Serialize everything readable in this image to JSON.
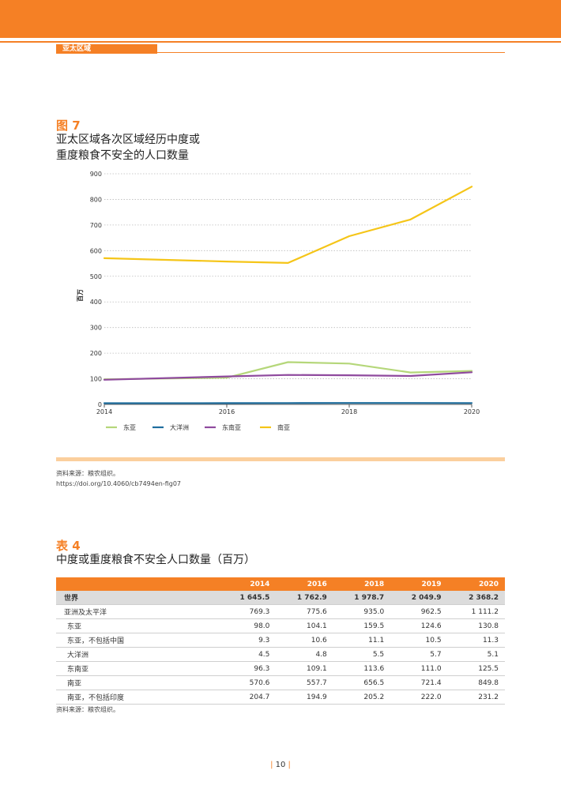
{
  "header": {
    "section": "亚太区域"
  },
  "figure": {
    "label": "图 7",
    "title_line1": "亚太区域各次区域经历中度或",
    "title_line2": "重度粮食不安全的人口数量",
    "source_line1": "资料来源：粮农组织。",
    "source_line2": "https://doi.org/10.4060/cb7494en-fig07"
  },
  "chart_data": {
    "type": "line",
    "ylabel": "百万",
    "xlabel": "",
    "ylim": [
      0,
      900
    ],
    "xlim": [
      2014,
      2020
    ],
    "yticks": [
      0,
      100,
      200,
      300,
      400,
      500,
      600,
      700,
      800,
      900
    ],
    "xticks": [
      2014,
      2016,
      2018,
      2020
    ],
    "x": [
      2014,
      2016,
      2017,
      2018,
      2019,
      2020
    ],
    "grid": "horizontal dotted",
    "legend_position": "bottom",
    "series": [
      {
        "name": "东亚",
        "color": "#b5d77a",
        "values": [
          98.0,
          104.1,
          165,
          159.5,
          124.6,
          130.8
        ]
      },
      {
        "name": "大洋洲",
        "color": "#1f6e9e",
        "values": [
          4.5,
          4.8,
          5.2,
          5.5,
          5.7,
          5.1
        ]
      },
      {
        "name": "东南亚",
        "color": "#8f4a9e",
        "values": [
          96.3,
          109.1,
          115,
          113.6,
          111.0,
          125.5
        ]
      },
      {
        "name": "南亚",
        "color": "#f5c518",
        "values": [
          570.6,
          557.7,
          552,
          656.5,
          721.4,
          849.8
        ]
      }
    ]
  },
  "table": {
    "label": "表 4",
    "title": "中度或重度粮食不安全人口数量（百万）",
    "columns": [
      "",
      "2014",
      "2016",
      "2018",
      "2019",
      "2020"
    ],
    "rows": [
      {
        "name": "世界",
        "values": [
          "1 645.5",
          "1 762.9",
          "1 978.7",
          "2 049.9",
          "2 368.2"
        ],
        "style": "world"
      },
      {
        "name": "亚洲及太平洋",
        "values": [
          "769.3",
          "775.6",
          "935.0",
          "962.5",
          "1 111.2"
        ],
        "style": ""
      },
      {
        "name": "东亚",
        "values": [
          "98.0",
          "104.1",
          "159.5",
          "124.6",
          "130.8"
        ],
        "style": "sub"
      },
      {
        "name": "东亚，不包括中国",
        "values": [
          "9.3",
          "10.6",
          "11.1",
          "10.5",
          "11.3"
        ],
        "style": "sub"
      },
      {
        "name": "大洋洲",
        "values": [
          "4.5",
          "4.8",
          "5.5",
          "5.7",
          "5.1"
        ],
        "style": "sub"
      },
      {
        "name": "东南亚",
        "values": [
          "96.3",
          "109.1",
          "113.6",
          "111.0",
          "125.5"
        ],
        "style": "sub"
      },
      {
        "name": "南亚",
        "values": [
          "570.6",
          "557.7",
          "656.5",
          "721.4",
          "849.8"
        ],
        "style": "sub"
      },
      {
        "name": "南亚，不包括印度",
        "values": [
          "204.7",
          "194.9",
          "205.2",
          "222.0",
          "231.2"
        ],
        "style": "sub"
      }
    ],
    "source": "资料来源：粮农组织。"
  },
  "page": {
    "number": "10"
  }
}
